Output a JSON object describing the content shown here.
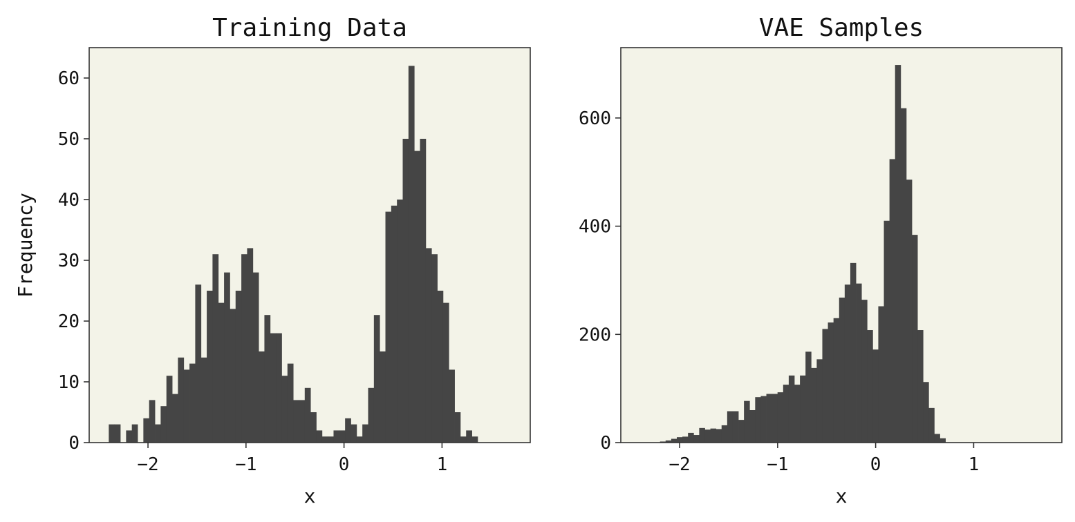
{
  "colors": {
    "bar": "#454545",
    "plot_background": "#f3f3e8",
    "frame": "#333333"
  },
  "chart_data": [
    {
      "type": "bar",
      "title": "Training Data",
      "xlabel": "x",
      "ylabel": "Frequency",
      "xlim": [
        -2.6,
        1.9
      ],
      "ylim": [
        0,
        65
      ],
      "grid": false,
      "xticks": [
        -2,
        -1,
        0,
        1
      ],
      "xtick_labels": [
        "−2",
        "−1",
        "0",
        "1"
      ],
      "yticks": [
        0,
        10,
        20,
        30,
        40,
        50,
        60
      ],
      "ytick_labels": [
        "0",
        "10",
        "20",
        "30",
        "40",
        "50",
        "60"
      ],
      "bin_start": -2.4,
      "bin_width": 0.0588,
      "values": [
        3,
        3,
        0,
        2,
        3,
        0,
        4,
        7,
        3,
        6,
        11,
        8,
        14,
        12,
        13,
        26,
        14,
        25,
        31,
        23,
        28,
        22,
        25,
        31,
        32,
        28,
        15,
        21,
        18,
        18,
        11,
        13,
        7,
        7,
        9,
        5,
        2,
        1,
        1,
        2,
        2,
        4,
        3,
        1,
        3,
        9,
        21,
        15,
        38,
        39,
        40,
        50,
        62,
        48,
        50,
        32,
        31,
        25,
        23,
        12,
        5,
        1,
        2,
        1
      ]
    },
    {
      "type": "bar",
      "title": "VAE Samples",
      "xlabel": "x",
      "ylabel": "",
      "xlim": [
        -2.6,
        1.9
      ],
      "ylim": [
        0,
        730
      ],
      "grid": false,
      "xticks": [
        -2,
        -1,
        0,
        1
      ],
      "xtick_labels": [
        "−2",
        "−1",
        "0",
        "1"
      ],
      "yticks": [
        0,
        200,
        400,
        600
      ],
      "ytick_labels": [
        "0",
        "200",
        "400",
        "600"
      ],
      "bin_start": -2.2,
      "bin_width": 0.0571,
      "values": [
        2,
        4,
        7,
        10,
        11,
        18,
        14,
        27,
        24,
        26,
        25,
        32,
        58,
        58,
        42,
        77,
        60,
        84,
        86,
        90,
        90,
        93,
        107,
        124,
        107,
        124,
        168,
        138,
        154,
        210,
        222,
        230,
        268,
        292,
        332,
        294,
        264,
        208,
        172,
        252,
        410,
        524,
        698,
        618,
        486,
        384,
        208,
        112,
        64,
        16,
        8
      ]
    }
  ]
}
